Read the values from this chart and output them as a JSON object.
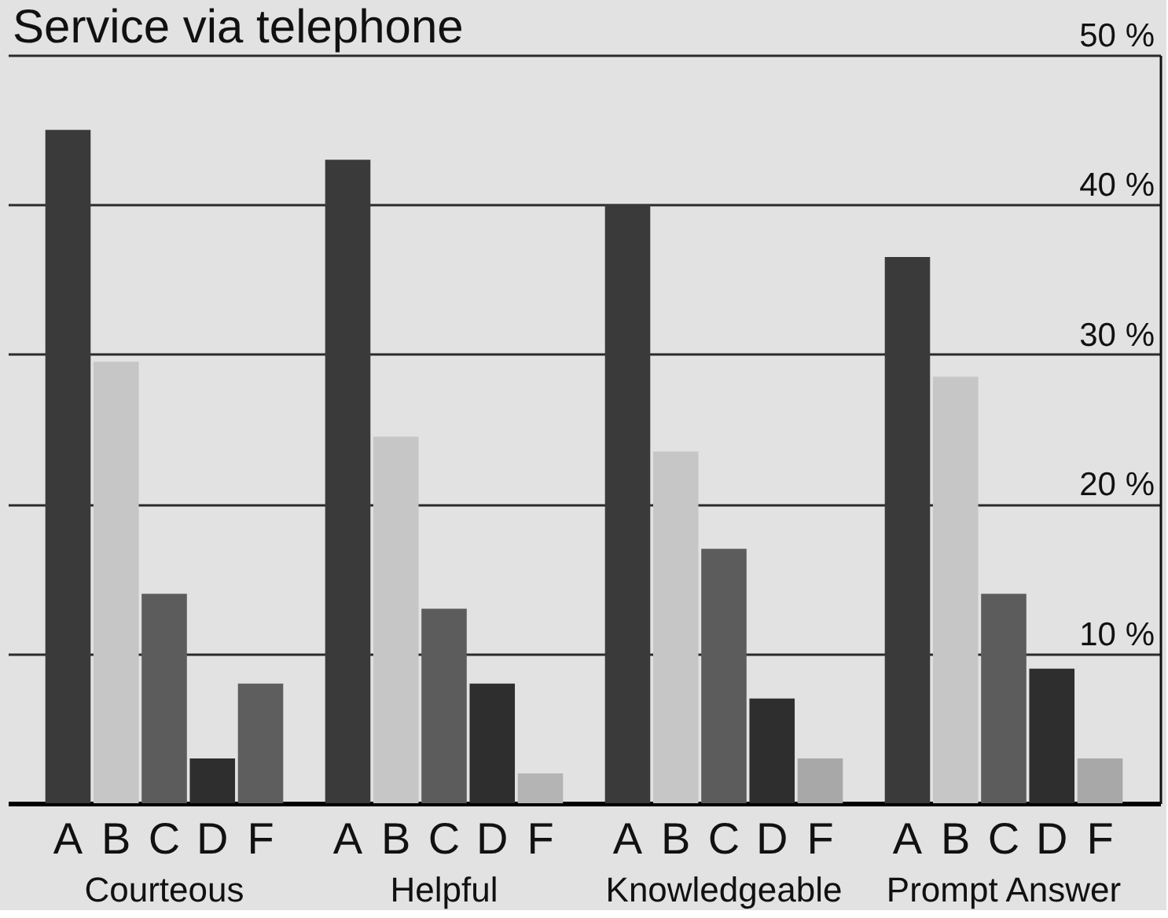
{
  "chart_data": {
    "type": "bar",
    "title": "Service via telephone",
    "categories": [
      "Courteous",
      "Helpful",
      "Knowledgeable",
      "Prompt Answer"
    ],
    "series": [
      {
        "name": "A",
        "color": "#3a3a3a",
        "values": [
          45,
          43,
          40,
          36.5
        ]
      },
      {
        "name": "B",
        "color": "#c6c6c6",
        "values": [
          29.5,
          24.5,
          23.5,
          28.5
        ]
      },
      {
        "name": "C",
        "color": "#5c5c5c",
        "values": [
          14,
          13,
          17,
          14
        ]
      },
      {
        "name": "D",
        "color": "#2e2e2e",
        "values": [
          3,
          8,
          7,
          9
        ]
      },
      {
        "name": "F",
        "colors": [
          "#5e5e5e",
          "#b4b4b4",
          "#a8a8a8",
          "#a8a8a8"
        ],
        "values": [
          8,
          2,
          3,
          3
        ]
      }
    ],
    "ylim": [
      0,
      50
    ],
    "yticks": [
      {
        "value": 10,
        "label": "10 %"
      },
      {
        "value": 20,
        "label": "20 %"
      },
      {
        "value": 30,
        "label": "30 %"
      },
      {
        "value": 40,
        "label": "40 %"
      },
      {
        "value": 50,
        "label": "50 %"
      }
    ],
    "grid": "y"
  }
}
